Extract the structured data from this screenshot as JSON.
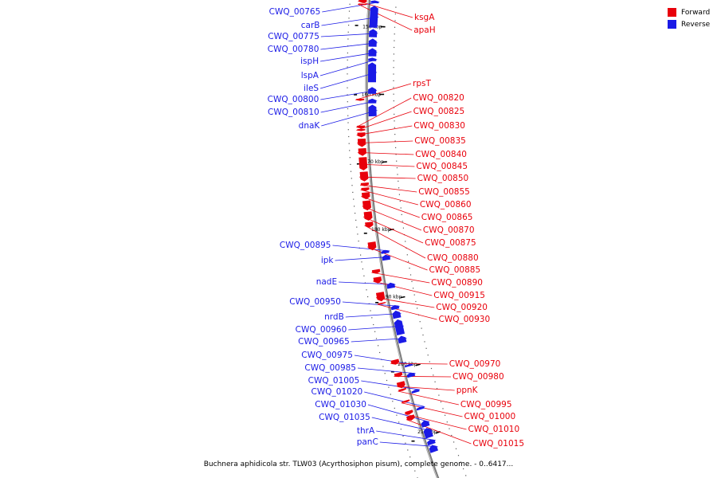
{
  "legend": {
    "forward_label": "Forward",
    "reverse_label": "Reverse",
    "forward_color": "#e8000b",
    "reverse_color": "#1a1ae6"
  },
  "caption": "Buchnera aphidicola str. TLW03 (Acyrthosiphon pisum), complete genome. - 0..6417...",
  "axis": {
    "ticks": [
      {
        "kbp": 150,
        "label": "150 kbp"
      },
      {
        "kbp": 160,
        "label": "160 kbp"
      },
      {
        "kbp": 170,
        "label": "170 kbp"
      },
      {
        "kbp": 180,
        "label": "180 kbp"
      },
      {
        "kbp": 190,
        "label": "190 kbp"
      },
      {
        "kbp": 200,
        "label": "200 kbp"
      },
      {
        "kbp": 210,
        "label": "210 kbp"
      }
    ]
  },
  "reverse_genes": [
    {
      "label": "CWQ_00765",
      "start": 146.2,
      "end": 146.6
    },
    {
      "label": "carB",
      "start": 147.0,
      "end": 150.2
    },
    {
      "label": "CWQ_00775",
      "start": 150.4,
      "end": 151.6
    },
    {
      "label": "CWQ_00780",
      "start": 151.8,
      "end": 153.0
    },
    {
      "label": "ispH",
      "start": 153.2,
      "end": 154.4
    },
    {
      "label": "lspA",
      "start": 154.6,
      "end": 155.1
    },
    {
      "label": "ileS",
      "start": 155.3,
      "end": 158.2
    },
    {
      "label": "CWQ_00800",
      "start": 158.9,
      "end": 159.9
    },
    {
      "label": "CWQ_00810",
      "start": 160.6,
      "end": 161.3
    },
    {
      "label": "dnaK",
      "start": 161.5,
      "end": 163.2
    },
    {
      "label": "CWQ_00895",
      "start": 182.8,
      "end": 183.3
    },
    {
      "label": "ipk",
      "start": 183.5,
      "end": 184.3
    },
    {
      "label": "nadE",
      "start": 187.6,
      "end": 188.4
    },
    {
      "label": "CWQ_00950",
      "start": 190.9,
      "end": 191.5
    },
    {
      "label": "nrdB",
      "start": 191.7,
      "end": 192.8
    },
    {
      "label": "CWQ_00960",
      "start": 193.0,
      "end": 195.2
    },
    {
      "label": "CWQ_00965",
      "start": 195.4,
      "end": 196.4
    },
    {
      "label": "CWQ_00975",
      "start": 199.6,
      "end": 199.9
    },
    {
      "label": "CWQ_00985",
      "start": 200.8,
      "end": 201.4
    },
    {
      "label": "CWQ_01005",
      "start": 203.3,
      "end": 203.7
    },
    {
      "label": "CWQ_01020",
      "start": 205.8,
      "end": 206.2
    },
    {
      "label": "CWQ_01030",
      "start": 207.8,
      "end": 208.7
    },
    {
      "label": "CWQ_01035",
      "start": 208.9,
      "end": 210.3
    },
    {
      "label": "thrA",
      "start": 210.6,
      "end": 211.3
    },
    {
      "label": "panC",
      "start": 211.4,
      "end": 212.4
    }
  ],
  "forward_genes": [
    {
      "label": "ksgA",
      "start": 146.2,
      "end": 146.7
    },
    {
      "label": "apaH",
      "start": 146.8,
      "end": 147.0
    },
    {
      "label": "rpsT",
      "start": 160.6,
      "end": 160.9
    },
    {
      "label": "CWQ_00820",
      "start": 164.5,
      "end": 164.9
    },
    {
      "label": "CWQ_00825",
      "start": 165.0,
      "end": 165.3
    },
    {
      "label": "CWQ_00830",
      "start": 165.5,
      "end": 166.2
    },
    {
      "label": "CWQ_00835",
      "start": 166.4,
      "end": 167.6
    },
    {
      "label": "CWQ_00840",
      "start": 167.8,
      "end": 168.9
    },
    {
      "label": "CWQ_00845",
      "start": 169.1,
      "end": 171.0
    },
    {
      "label": "CWQ_00850",
      "start": 171.2,
      "end": 172.6
    },
    {
      "label": "CWQ_00855",
      "start": 172.8,
      "end": 173.3
    },
    {
      "label": "CWQ_00860",
      "start": 173.5,
      "end": 174.0
    },
    {
      "label": "CWQ_00865",
      "start": 174.2,
      "end": 175.2
    },
    {
      "label": "CWQ_00870",
      "start": 175.4,
      "end": 176.8
    },
    {
      "label": "CWQ_00875",
      "start": 177.0,
      "end": 178.3
    },
    {
      "label": "CWQ_00880",
      "start": 178.5,
      "end": 179.3
    },
    {
      "label": "CWQ_00885",
      "start": 181.4,
      "end": 182.6
    },
    {
      "label": "CWQ_00890",
      "start": 185.4,
      "end": 186.0
    },
    {
      "label": "CWQ_00915",
      "start": 186.5,
      "end": 187.4
    },
    {
      "label": "CWQ_00920",
      "start": 188.7,
      "end": 190.0
    },
    {
      "label": "CWQ_00930",
      "start": 190.2,
      "end": 190.4
    },
    {
      "label": "CWQ_00970",
      "start": 198.5,
      "end": 199.2
    },
    {
      "label": "CWQ_00980",
      "start": 200.4,
      "end": 201.0
    },
    {
      "label": "ppnK",
      "start": 201.7,
      "end": 202.6
    },
    {
      "label": "CWQ_00995",
      "start": 202.7,
      "end": 203.0
    },
    {
      "label": "CWQ_01000",
      "start": 204.4,
      "end": 204.7
    },
    {
      "label": "CWQ_01010",
      "start": 205.9,
      "end": 206.4
    },
    {
      "label": "CWQ_01015",
      "start": 206.6,
      "end": 207.3
    }
  ]
}
